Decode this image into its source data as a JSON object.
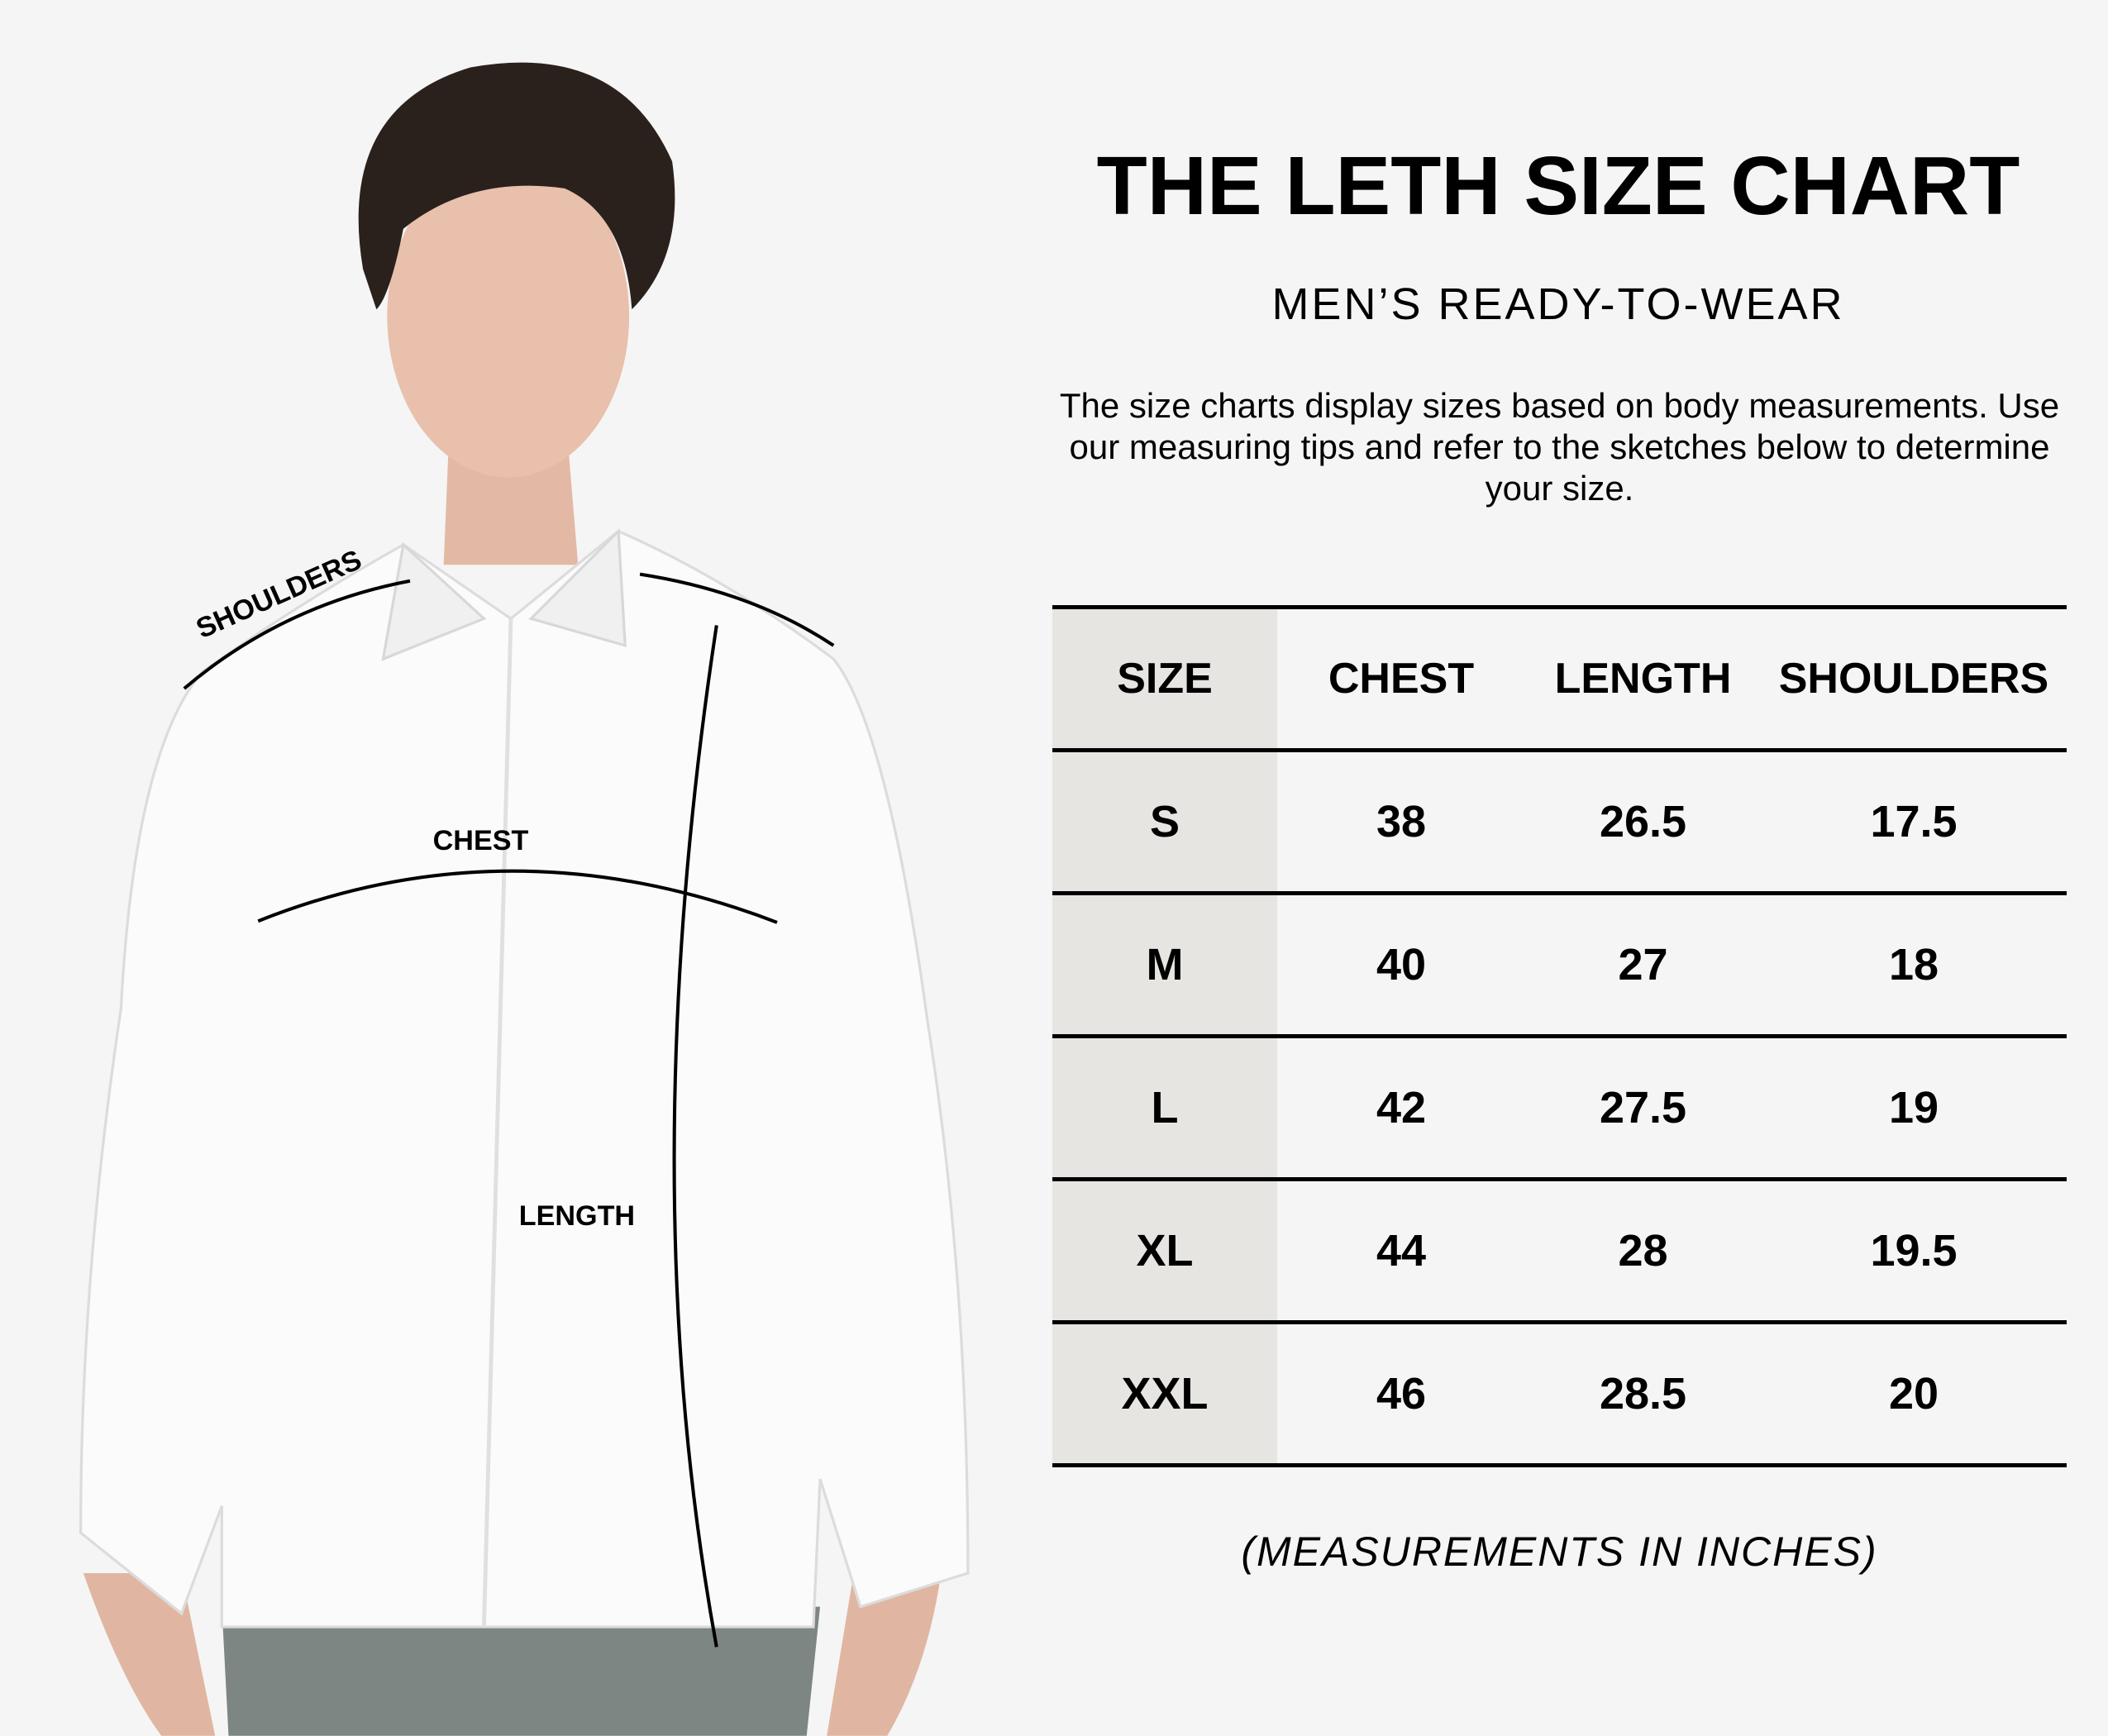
{
  "header": {
    "title": "THE LETH SIZE CHART",
    "subtitle": "MEN’S READY-TO-WEAR",
    "description": "The size charts display sizes based on body measurements. Use our measuring tips and refer to the sketches below to determine your size."
  },
  "figure": {
    "labels": {
      "shoulders": "SHOULDERS",
      "chest": "CHEST",
      "length": "LENGTH"
    }
  },
  "table": {
    "headers": [
      "SIZE",
      "CHEST",
      "LENGTH",
      "SHOULDERS"
    ],
    "rows": [
      [
        "S",
        "38",
        "26.5",
        "17.5"
      ],
      [
        "M",
        "40",
        "27",
        "18"
      ],
      [
        "L",
        "42",
        "27.5",
        "19"
      ],
      [
        "XL",
        "44",
        "28",
        "19.5"
      ],
      [
        "XXL",
        "46",
        "28.5",
        "20"
      ]
    ]
  },
  "footer": {
    "note": "(MEASUREMENTS IN INCHES)"
  },
  "colors": {
    "background": "#f5f5f5",
    "size_column": "#e6e5e2",
    "text": "#000000"
  }
}
